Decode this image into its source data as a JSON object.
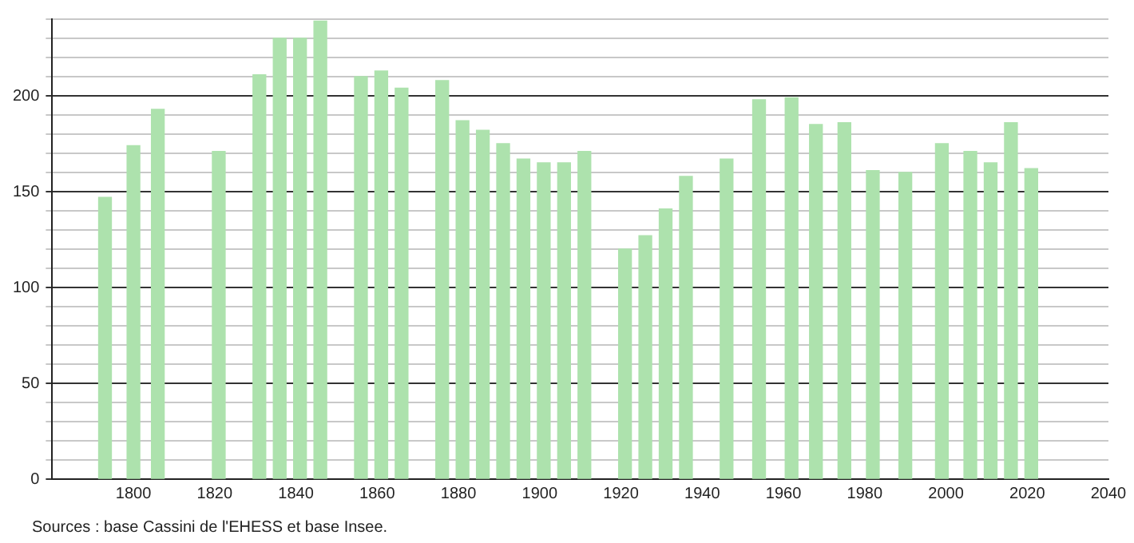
{
  "chart_data": {
    "type": "bar",
    "x": [
      1793,
      1800,
      1806,
      1821,
      1831,
      1836,
      1841,
      1846,
      1856,
      1861,
      1866,
      1876,
      1881,
      1886,
      1891,
      1896,
      1901,
      1906,
      1911,
      1921,
      1926,
      1931,
      1936,
      1946,
      1954,
      1962,
      1968,
      1975,
      1982,
      1990,
      1999,
      2006,
      2011,
      2016,
      2021
    ],
    "values": [
      147,
      174,
      193,
      171,
      211,
      230,
      230,
      239,
      210,
      213,
      204,
      208,
      187,
      182,
      175,
      167,
      165,
      165,
      171,
      120,
      127,
      141,
      158,
      167,
      198,
      199,
      185,
      186,
      161,
      160,
      175,
      171,
      165,
      186,
      162
    ],
    "color": "#ade2ad",
    "xlim": [
      1780,
      2040
    ],
    "xticks": [
      1800,
      1820,
      1840,
      1860,
      1880,
      1900,
      1920,
      1940,
      1960,
      1980,
      2000,
      2020,
      2040
    ],
    "ylim": [
      0,
      240
    ],
    "yticks": [
      0,
      {
        "value": 10,
        "label": null
      },
      {
        "value": 20,
        "label": null
      },
      {
        "value": 30,
        "label": null
      },
      {
        "value": 40,
        "label": null
      },
      50,
      {
        "value": 60,
        "label": null
      },
      {
        "value": 70,
        "label": null
      },
      {
        "value": 80,
        "label": null
      },
      {
        "value": 90,
        "label": null
      },
      100,
      {
        "value": 110,
        "label": null
      },
      {
        "value": 120,
        "label": null
      },
      {
        "value": 130,
        "label": null
      },
      {
        "value": 140,
        "label": null
      },
      150,
      {
        "value": 160,
        "label": null
      },
      {
        "value": 170,
        "label": null
      },
      {
        "value": 180,
        "label": null
      },
      {
        "value": 190,
        "label": null
      },
      200,
      {
        "value": 210,
        "label": null
      },
      {
        "value": 220,
        "label": null
      },
      {
        "value": 230,
        "label": null
      },
      {
        "value": 240,
        "label": null
      }
    ],
    "grid": "y",
    "annotations": [
      "Sources : base Cassini de l'EHESS et base Insee."
    ]
  }
}
